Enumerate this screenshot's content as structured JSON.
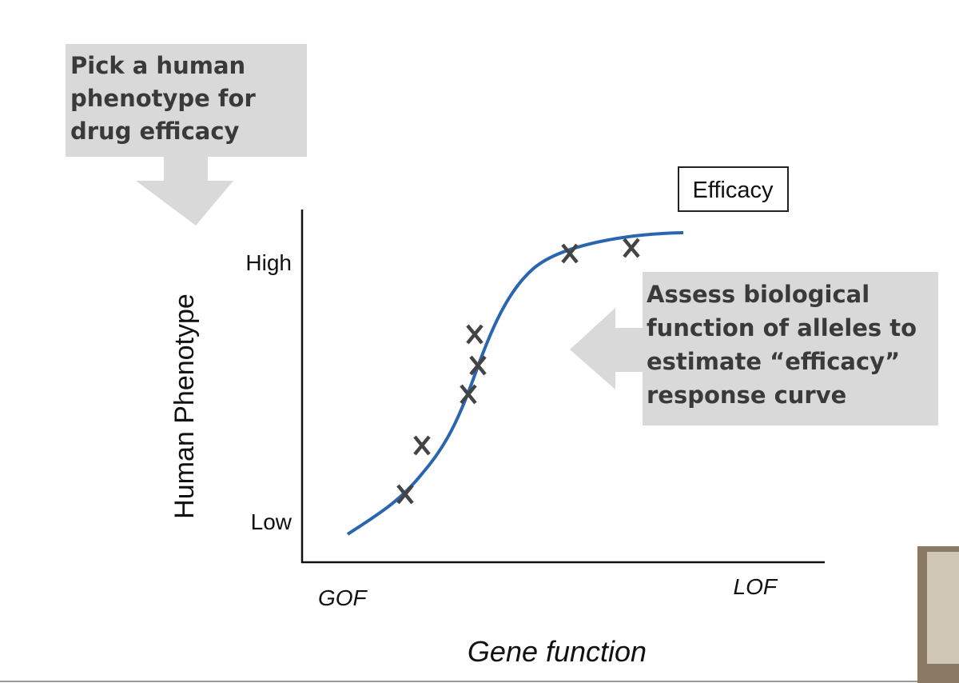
{
  "callouts": {
    "top": [
      "Pick a human",
      "phenotype for",
      "drug efficacy"
    ],
    "right": [
      "Assess biological",
      "function of alleles to",
      "estimate “efficacy”",
      "response curve"
    ]
  },
  "efficacy_label": "Efficacy",
  "y_axis": {
    "title": "Human Phenotype",
    "high": "High",
    "low": "Low"
  },
  "x_axis": {
    "title": "Gene function",
    "left": "GOF",
    "right": "LOF"
  }
}
